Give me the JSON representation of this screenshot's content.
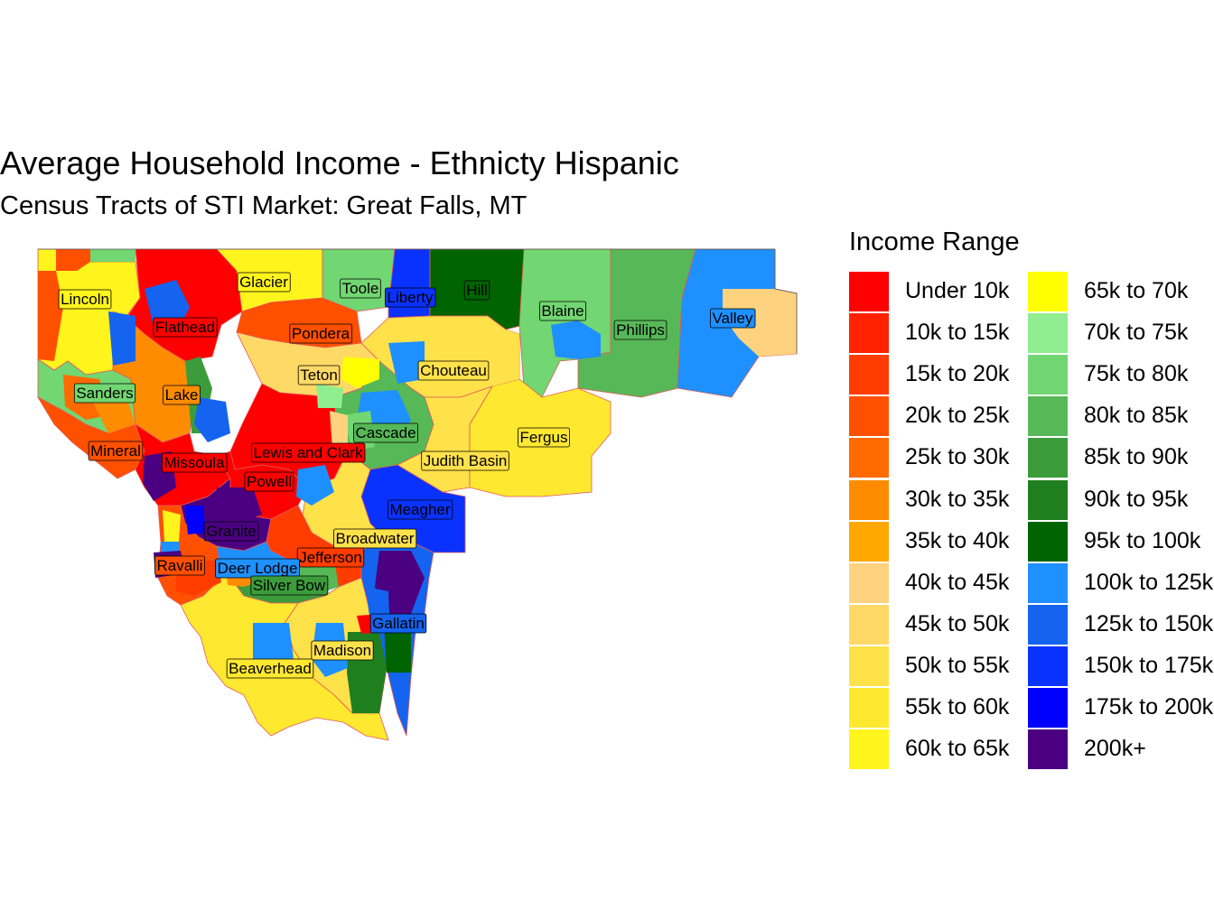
{
  "title": "Average Household Income - Ethnicty Hispanic",
  "subtitle": "Census Tracts of STI Market: Great Falls, MT",
  "legend": {
    "title": "Income Range",
    "items": [
      {
        "label": "Under 10k",
        "color": "#FF0000"
      },
      {
        "label": "10k to 15k",
        "color": "#FF2200"
      },
      {
        "label": "15k to 20k",
        "color": "#FF3C00"
      },
      {
        "label": "20k to 25k",
        "color": "#FF5000"
      },
      {
        "label": "25k to 30k",
        "color": "#FF6A00"
      },
      {
        "label": "30k to 35k",
        "color": "#FF8C00"
      },
      {
        "label": "35k to 40k",
        "color": "#FFA800"
      },
      {
        "label": "40k to 45k",
        "color": "#FFD27F"
      },
      {
        "label": "45k to 50k",
        "color": "#FFD966"
      },
      {
        "label": "50k to 55k",
        "color": "#FFE14A"
      },
      {
        "label": "55k to 60k",
        "color": "#FFE830"
      },
      {
        "label": "60k to 65k",
        "color": "#FFF41C"
      },
      {
        "label": "65k to 70k",
        "color": "#FFFF00"
      },
      {
        "label": "70k to 75k",
        "color": "#90EE90"
      },
      {
        "label": "75k to 80k",
        "color": "#72D672"
      },
      {
        "label": "80k to 85k",
        "color": "#57B857"
      },
      {
        "label": "85k to 90k",
        "color": "#3C9C3C"
      },
      {
        "label": "90k to 95k",
        "color": "#1F7F1F"
      },
      {
        "label": "95k to 100k",
        "color": "#006400"
      },
      {
        "label": "100k to 125k",
        "color": "#1E90FF"
      },
      {
        "label": "125k to 150k",
        "color": "#1464F0"
      },
      {
        "label": "150k to 175k",
        "color": "#0A32FF"
      },
      {
        "label": "175k to 200k",
        "color": "#0000FF"
      },
      {
        "label": "200k+",
        "color": "#4B0082"
      }
    ]
  },
  "counties": [
    {
      "name": "Lincoln",
      "color": "#FFF41C"
    },
    {
      "name": "Flathead",
      "color": "#FF0000"
    },
    {
      "name": "Glacier",
      "color": "#FFF41C"
    },
    {
      "name": "Toole",
      "color": "#72D672"
    },
    {
      "name": "Liberty",
      "color": "#0A32FF"
    },
    {
      "name": "Hill",
      "color": "#006400"
    },
    {
      "name": "Blaine",
      "color": "#72D672"
    },
    {
      "name": "Phillips",
      "color": "#57B857"
    },
    {
      "name": "Valley",
      "color": "#1E90FF"
    },
    {
      "name": "Pondera",
      "color": "#FF5000"
    },
    {
      "name": "Teton",
      "color": "#FFD966"
    },
    {
      "name": "Chouteau",
      "color": "#FFE14A"
    },
    {
      "name": "Sanders",
      "color": "#72D672"
    },
    {
      "name": "Lake",
      "color": "#FF8C00"
    },
    {
      "name": "Cascade",
      "color": "#57B857"
    },
    {
      "name": "Fergus",
      "color": "#FFE830"
    },
    {
      "name": "Mineral",
      "color": "#FF5000"
    },
    {
      "name": "Missoula",
      "color": "#FF0000"
    },
    {
      "name": "Lewis and Clark",
      "color": "#FF0000"
    },
    {
      "name": "Judith Basin",
      "color": "#FFE14A"
    },
    {
      "name": "Powell",
      "color": "#FF0000"
    },
    {
      "name": "Meagher",
      "color": "#0A32FF"
    },
    {
      "name": "Granite",
      "color": "#4B0082"
    },
    {
      "name": "Broadwater",
      "color": "#FFE14A"
    },
    {
      "name": "Jefferson",
      "color": "#FF3C00"
    },
    {
      "name": "Ravalli",
      "color": "#FF5000"
    },
    {
      "name": "Deer Lodge",
      "color": "#1E90FF"
    },
    {
      "name": "Silver Bow",
      "color": "#3C9C3C"
    },
    {
      "name": "Gallatin",
      "color": "#1464F0"
    },
    {
      "name": "Madison",
      "color": "#FFE14A"
    },
    {
      "name": "Beaverhead",
      "color": "#FFE830"
    }
  ]
}
